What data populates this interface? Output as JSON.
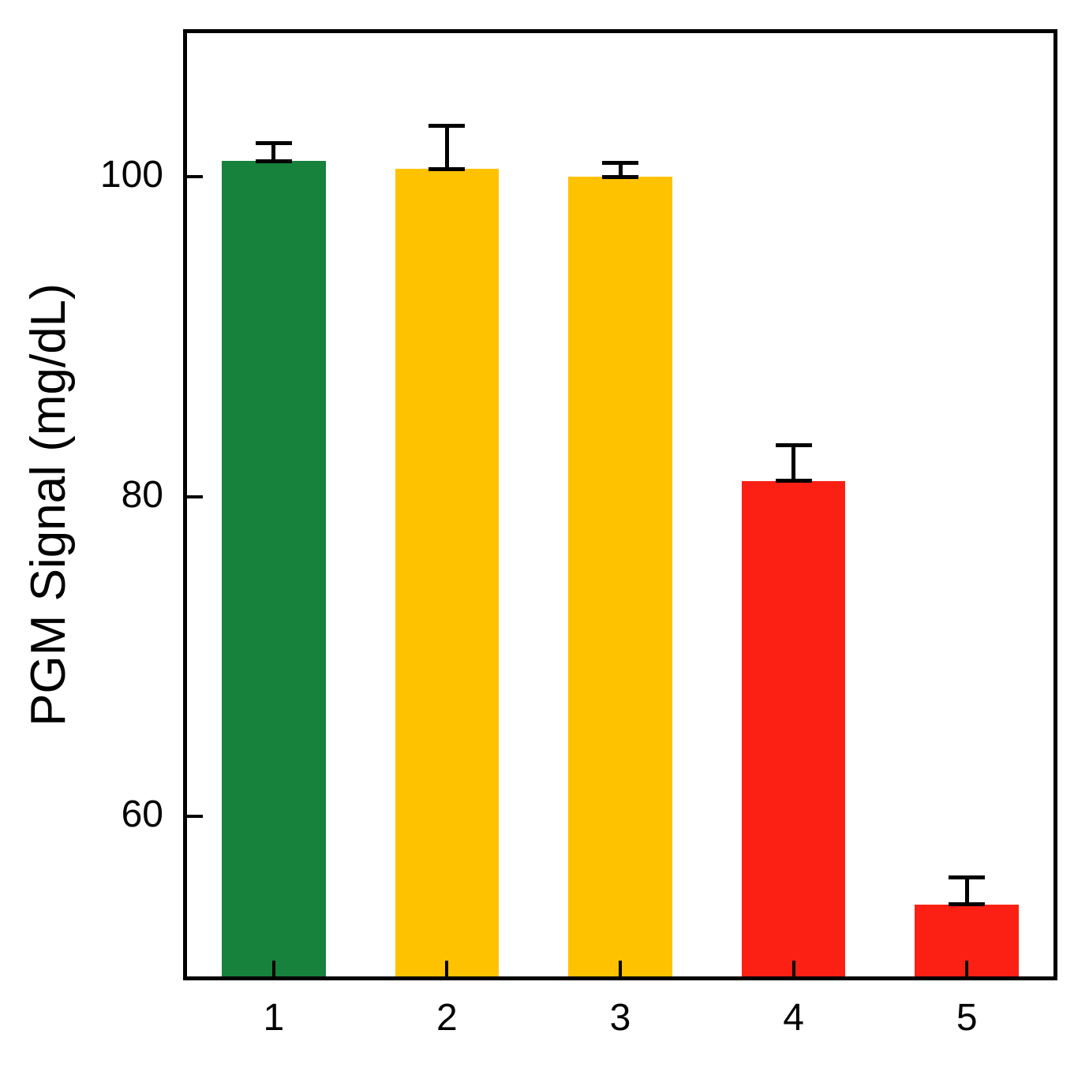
{
  "chart_data": {
    "type": "bar",
    "title": "",
    "xlabel": "",
    "ylabel": "PGM Signal (mg/dL)",
    "categories": [
      "1",
      "2",
      "3",
      "4",
      "5"
    ],
    "values": [
      101,
      100.5,
      100,
      81,
      54.5
    ],
    "errors": [
      1.1,
      2.7,
      0.9,
      2.2,
      1.7
    ],
    "colors": [
      "#16823C",
      "#FFC200",
      "#FFC200",
      "#FC2014",
      "#FC2014"
    ],
    "ylim": [
      50,
      109
    ],
    "yticks": [
      60,
      80,
      100
    ],
    "grid": false,
    "legend": null,
    "bar_width_fraction": 0.6,
    "error_bar_color": "#000000"
  }
}
